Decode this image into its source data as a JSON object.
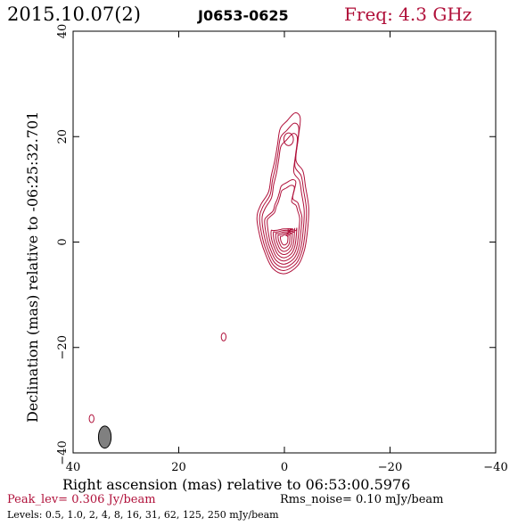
{
  "header": {
    "date": "2015.10.07(2)",
    "source": "J0653-0625",
    "frequency": "Freq: 4.3 GHz"
  },
  "chart_data": {
    "type": "contour",
    "xlabel": "Right ascension (mas) relative to 06:53:00.5976",
    "ylabel": "Declination (mas) relative to -06:25:32.701",
    "xlim": [
      40,
      -40
    ],
    "ylim": [
      -40,
      40
    ],
    "x_ticks": [
      40,
      20,
      0,
      -20,
      -40
    ],
    "y_ticks": [
      -40,
      -20,
      0,
      20,
      40
    ],
    "x_tick_labels": [
      "40",
      "20",
      "0",
      "−20",
      "−40"
    ],
    "y_tick_labels": [
      "−40",
      "−20",
      "0",
      "20",
      "40"
    ],
    "peak_level": "Peak_lev=  0.306 Jy/beam",
    "rms_noise": "Rms_noise= 0.10 mJy/beam",
    "levels_text": "Levels: 0.5, 1.0,   2,   4,   8,  16,  31,  62, 125, 250 mJy/beam",
    "levels_mJy": [
      0.5,
      1.0,
      2,
      4,
      8,
      16,
      31,
      62,
      125,
      250
    ],
    "peak_position": [
      0,
      0
    ],
    "beam": {
      "center": [
        34,
        -37
      ],
      "major_mas": 4.2,
      "minor_mas": 2.0,
      "pa_deg": 0
    },
    "isolated_contours": [
      {
        "x": 11.5,
        "y": -18
      },
      {
        "x": 36.5,
        "y": -33.5
      }
    ],
    "jet_ridge": [
      [
        0,
        0
      ],
      [
        -1,
        8
      ],
      [
        0,
        14
      ],
      [
        0.5,
        22
      ]
    ],
    "contour_color": "#b0103a",
    "beam_color": "#808080"
  }
}
